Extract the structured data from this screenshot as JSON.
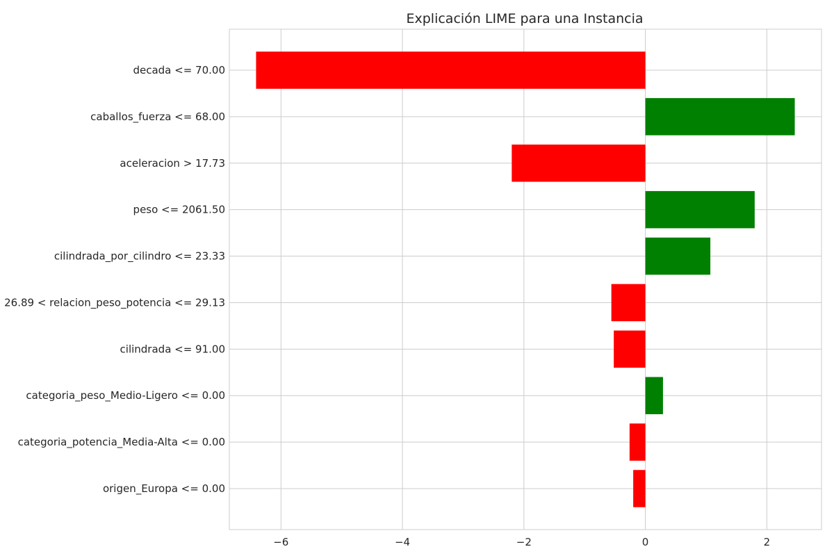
{
  "chart_data": {
    "type": "bar",
    "orientation": "horizontal",
    "title": "Explicación LIME para una Instancia",
    "xlabel": "",
    "ylabel": "",
    "xlim": [
      -6.85,
      2.9
    ],
    "xticks": [
      -6,
      -4,
      -2,
      0,
      2
    ],
    "xtick_labels": [
      "−6",
      "−4",
      "−2",
      "0",
      "2"
    ],
    "grid": true,
    "categories": [
      "decada <= 70.00",
      "caballos_fuerza <= 68.00",
      "aceleracion > 17.73",
      "peso <= 2061.50",
      "cilindrada_por_cilindro <= 23.33",
      "26.89 < relacion_peso_potencia <= 29.13",
      "cilindrada <= 91.00",
      "categoria_peso_Medio-Ligero <= 0.00",
      "categoria_potencia_Media-Alta <= 0.00",
      "origen_Europa <= 0.00"
    ],
    "values": [
      -6.41,
      2.46,
      -2.2,
      1.8,
      1.07,
      -0.56,
      -0.52,
      0.29,
      -0.26,
      -0.2
    ],
    "colors": {
      "positive": "#008000",
      "negative": "#ff0000",
      "grid": "#cccccc",
      "axes": "#cccccc"
    }
  }
}
